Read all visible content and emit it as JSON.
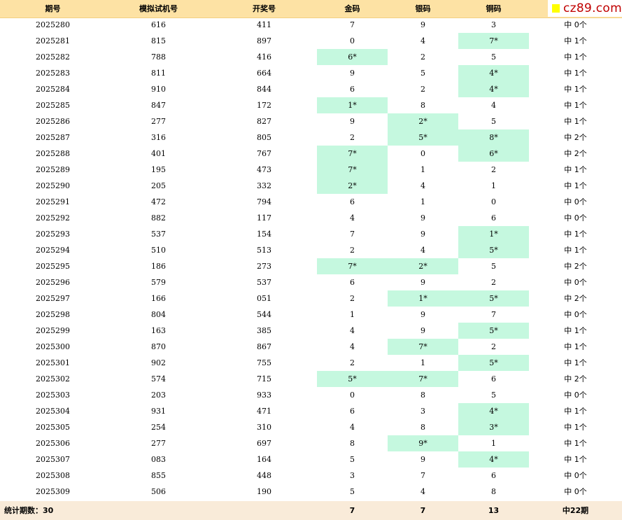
{
  "header": {
    "period": "期号",
    "sim": "模拟试机号",
    "draw": "开奖号",
    "gold": "金码",
    "silver": "银码",
    "bronze": "铜码"
  },
  "logo": {
    "text": "cz89.com"
  },
  "rows": [
    {
      "period": "2025280",
      "sim": "616",
      "draw": "411",
      "gold": "7",
      "gold_hit": false,
      "silver": "9",
      "silver_hit": false,
      "bronze": "3",
      "bronze_hit": false,
      "result": "中 0个"
    },
    {
      "period": "2025281",
      "sim": "815",
      "draw": "897",
      "gold": "0",
      "gold_hit": false,
      "silver": "4",
      "silver_hit": false,
      "bronze": "7*",
      "bronze_hit": true,
      "result": "中 1个"
    },
    {
      "period": "2025282",
      "sim": "788",
      "draw": "416",
      "gold": "6*",
      "gold_hit": true,
      "silver": "2",
      "silver_hit": false,
      "bronze": "5",
      "bronze_hit": false,
      "result": "中 1个"
    },
    {
      "period": "2025283",
      "sim": "811",
      "draw": "664",
      "gold": "9",
      "gold_hit": false,
      "silver": "5",
      "silver_hit": false,
      "bronze": "4*",
      "bronze_hit": true,
      "result": "中 1个"
    },
    {
      "period": "2025284",
      "sim": "910",
      "draw": "844",
      "gold": "6",
      "gold_hit": false,
      "silver": "2",
      "silver_hit": false,
      "bronze": "4*",
      "bronze_hit": true,
      "result": "中 1个"
    },
    {
      "period": "2025285",
      "sim": "847",
      "draw": "172",
      "gold": "1*",
      "gold_hit": true,
      "silver": "8",
      "silver_hit": false,
      "bronze": "4",
      "bronze_hit": false,
      "result": "中 1个"
    },
    {
      "period": "2025286",
      "sim": "277",
      "draw": "827",
      "gold": "9",
      "gold_hit": false,
      "silver": "2*",
      "silver_hit": true,
      "bronze": "5",
      "bronze_hit": false,
      "result": "中 1个"
    },
    {
      "period": "2025287",
      "sim": "316",
      "draw": "805",
      "gold": "2",
      "gold_hit": false,
      "silver": "5*",
      "silver_hit": true,
      "bronze": "8*",
      "bronze_hit": true,
      "result": "中 2个"
    },
    {
      "period": "2025288",
      "sim": "401",
      "draw": "767",
      "gold": "7*",
      "gold_hit": true,
      "silver": "0",
      "silver_hit": false,
      "bronze": "6*",
      "bronze_hit": true,
      "result": "中 2个"
    },
    {
      "period": "2025289",
      "sim": "195",
      "draw": "473",
      "gold": "7*",
      "gold_hit": true,
      "silver": "1",
      "silver_hit": false,
      "bronze": "2",
      "bronze_hit": false,
      "result": "中 1个"
    },
    {
      "period": "2025290",
      "sim": "205",
      "draw": "332",
      "gold": "2*",
      "gold_hit": true,
      "silver": "4",
      "silver_hit": false,
      "bronze": "1",
      "bronze_hit": false,
      "result": "中 1个"
    },
    {
      "period": "2025291",
      "sim": "472",
      "draw": "794",
      "gold": "6",
      "gold_hit": false,
      "silver": "1",
      "silver_hit": false,
      "bronze": "0",
      "bronze_hit": false,
      "result": "中 0个"
    },
    {
      "period": "2025292",
      "sim": "882",
      "draw": "117",
      "gold": "4",
      "gold_hit": false,
      "silver": "9",
      "silver_hit": false,
      "bronze": "6",
      "bronze_hit": false,
      "result": "中 0个"
    },
    {
      "period": "2025293",
      "sim": "537",
      "draw": "154",
      "gold": "7",
      "gold_hit": false,
      "silver": "9",
      "silver_hit": false,
      "bronze": "1*",
      "bronze_hit": true,
      "result": "中 1个"
    },
    {
      "period": "2025294",
      "sim": "510",
      "draw": "513",
      "gold": "2",
      "gold_hit": false,
      "silver": "4",
      "silver_hit": false,
      "bronze": "5*",
      "bronze_hit": true,
      "result": "中 1个"
    },
    {
      "period": "2025295",
      "sim": "186",
      "draw": "273",
      "gold": "7*",
      "gold_hit": true,
      "silver": "2*",
      "silver_hit": true,
      "bronze": "5",
      "bronze_hit": false,
      "result": "中 2个"
    },
    {
      "period": "2025296",
      "sim": "579",
      "draw": "537",
      "gold": "6",
      "gold_hit": false,
      "silver": "9",
      "silver_hit": false,
      "bronze": "2",
      "bronze_hit": false,
      "result": "中 0个"
    },
    {
      "period": "2025297",
      "sim": "166",
      "draw": "051",
      "gold": "2",
      "gold_hit": false,
      "silver": "1*",
      "silver_hit": true,
      "bronze": "5*",
      "bronze_hit": true,
      "result": "中 2个"
    },
    {
      "period": "2025298",
      "sim": "804",
      "draw": "544",
      "gold": "1",
      "gold_hit": false,
      "silver": "9",
      "silver_hit": false,
      "bronze": "7",
      "bronze_hit": false,
      "result": "中 0个"
    },
    {
      "period": "2025299",
      "sim": "163",
      "draw": "385",
      "gold": "4",
      "gold_hit": false,
      "silver": "9",
      "silver_hit": false,
      "bronze": "5*",
      "bronze_hit": true,
      "result": "中 1个"
    },
    {
      "period": "2025300",
      "sim": "870",
      "draw": "867",
      "gold": "4",
      "gold_hit": false,
      "silver": "7*",
      "silver_hit": true,
      "bronze": "2",
      "bronze_hit": false,
      "result": "中 1个"
    },
    {
      "period": "2025301",
      "sim": "902",
      "draw": "755",
      "gold": "2",
      "gold_hit": false,
      "silver": "1",
      "silver_hit": false,
      "bronze": "5*",
      "bronze_hit": true,
      "result": "中 1个"
    },
    {
      "period": "2025302",
      "sim": "574",
      "draw": "715",
      "gold": "5*",
      "gold_hit": true,
      "silver": "7*",
      "silver_hit": true,
      "bronze": "6",
      "bronze_hit": false,
      "result": "中 2个"
    },
    {
      "period": "2025303",
      "sim": "203",
      "draw": "933",
      "gold": "0",
      "gold_hit": false,
      "silver": "8",
      "silver_hit": false,
      "bronze": "5",
      "bronze_hit": false,
      "result": "中 0个"
    },
    {
      "period": "2025304",
      "sim": "931",
      "draw": "471",
      "gold": "6",
      "gold_hit": false,
      "silver": "3",
      "silver_hit": false,
      "bronze": "4*",
      "bronze_hit": true,
      "result": "中 1个"
    },
    {
      "period": "2025305",
      "sim": "254",
      "draw": "310",
      "gold": "4",
      "gold_hit": false,
      "silver": "8",
      "silver_hit": false,
      "bronze": "3*",
      "bronze_hit": true,
      "result": "中 1个"
    },
    {
      "period": "2025306",
      "sim": "277",
      "draw": "697",
      "gold": "8",
      "gold_hit": false,
      "silver": "9*",
      "silver_hit": true,
      "bronze": "1",
      "bronze_hit": false,
      "result": "中 1个"
    },
    {
      "period": "2025307",
      "sim": "083",
      "draw": "164",
      "gold": "5",
      "gold_hit": false,
      "silver": "9",
      "silver_hit": false,
      "bronze": "4*",
      "bronze_hit": true,
      "result": "中 1个"
    },
    {
      "period": "2025308",
      "sim": "855",
      "draw": "448",
      "gold": "3",
      "gold_hit": false,
      "silver": "7",
      "silver_hit": false,
      "bronze": "6",
      "bronze_hit": false,
      "result": "中 0个"
    },
    {
      "period": "2025309",
      "sim": "506",
      "draw": "190",
      "gold": "5",
      "gold_hit": false,
      "silver": "4",
      "silver_hit": false,
      "bronze": "8",
      "bronze_hit": false,
      "result": "中 0个"
    }
  ],
  "footer": {
    "label": "统计期数：30",
    "gold_total": "7",
    "silver_total": "7",
    "bronze_total": "13",
    "result_total": "中22期"
  },
  "colors": {
    "header_bg": "#fde2a4",
    "hit_bg": "#c5f8df",
    "footer_bg": "#f9ebd9",
    "logo_square": "#ffff00",
    "logo_text": "#c00000"
  }
}
